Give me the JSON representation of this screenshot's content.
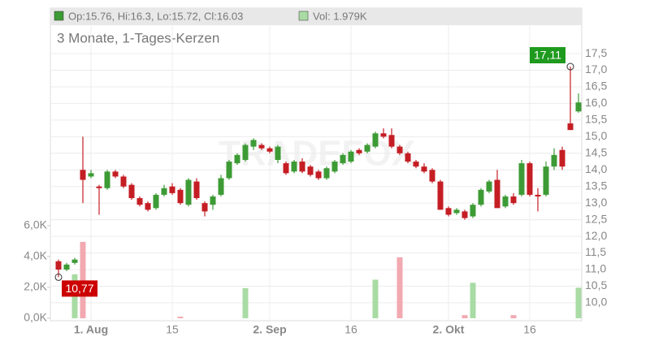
{
  "chart_data": {
    "type": "candlestick",
    "title": "3 Monate, 1-Tages-Kerzen",
    "watermark": "TRADEFOX",
    "ohlc_label": "Op:15.76, Hi:16.3, Lo:15.72, Cl:16.03",
    "volume_label": "Vol: 1.979K",
    "categories": [
      null,
      null,
      null,
      null,
      "1. Aug",
      null,
      null,
      null,
      null,
      null,
      null,
      null,
      null,
      null,
      "15",
      null,
      null,
      null,
      null,
      null,
      null,
      null,
      null,
      null,
      null,
      null,
      "2. Sep",
      null,
      null,
      null,
      null,
      null,
      null,
      null,
      null,
      null,
      "16",
      null,
      null,
      null,
      null,
      null,
      null,
      null,
      null,
      null,
      null,
      null,
      "2. Okt",
      null,
      null,
      null,
      null,
      null,
      null,
      null,
      null,
      null,
      "16",
      null,
      null,
      null,
      null,
      null,
      null
    ],
    "open": [
      11.25,
      11.0,
      11.2,
      14.0,
      13.8,
      13.5,
      13.45,
      13.95,
      13.8,
      13.55,
      13.15,
      13.0,
      12.85,
      13.25,
      13.5,
      13.4,
      12.95,
      13.65,
      13.0,
      12.95,
      13.25,
      13.75,
      14.2,
      14.3,
      14.7,
      14.75,
      14.65,
      14.3,
      14.2,
      13.95,
      14.25,
      14.1,
      13.95,
      13.75,
      13.95,
      14.2,
      14.25,
      14.6,
      14.55,
      14.7,
      15.1,
      15.05,
      14.7,
      14.5,
      14.25,
      14.1,
      14.0,
      13.65,
      12.85,
      12.7,
      12.75,
      12.6,
      12.95,
      13.35,
      13.7,
      12.9,
      13.2,
      13.25,
      14.2,
      13.25,
      13.25,
      14.1,
      14.6,
      15.4,
      15.76
    ],
    "high": [
      11.3,
      11.2,
      11.35,
      15.0,
      14.0,
      13.55,
      14.0,
      14.0,
      13.85,
      13.6,
      13.2,
      13.05,
      13.3,
      13.55,
      13.6,
      13.45,
      13.75,
      13.75,
      13.05,
      13.25,
      13.85,
      14.3,
      14.5,
      14.8,
      14.95,
      14.8,
      14.7,
      14.75,
      14.25,
      14.3,
      14.35,
      14.15,
      14.0,
      14.1,
      14.3,
      14.5,
      14.6,
      14.65,
      14.8,
      15.15,
      15.25,
      15.25,
      14.75,
      14.55,
      14.3,
      14.2,
      14.05,
      13.7,
      12.9,
      12.85,
      12.8,
      13.0,
      13.45,
      13.7,
      14.0,
      13.25,
      13.3,
      14.3,
      14.25,
      13.45,
      14.25,
      14.65,
      14.7,
      17.11,
      16.3
    ],
    "low": [
      10.77,
      10.95,
      11.15,
      13.0,
      13.75,
      12.65,
      13.4,
      13.75,
      13.45,
      13.1,
      12.9,
      12.75,
      12.8,
      13.2,
      13.25,
      12.95,
      12.9,
      13.1,
      12.6,
      12.8,
      13.2,
      13.7,
      14.15,
      14.25,
      14.6,
      14.6,
      14.5,
      14.2,
      13.85,
      13.9,
      13.9,
      13.8,
      13.7,
      13.7,
      13.9,
      14.15,
      14.2,
      14.45,
      14.5,
      14.65,
      14.95,
      14.65,
      14.45,
      14.2,
      14.05,
      13.9,
      13.6,
      12.8,
      12.6,
      12.65,
      12.5,
      12.55,
      12.9,
      13.3,
      12.85,
      12.85,
      12.95,
      13.2,
      13.2,
      12.75,
      13.2,
      14.0,
      14.0,
      15.2,
      15.72
    ],
    "close": [
      11.0,
      11.15,
      11.3,
      13.7,
      13.9,
      13.45,
      13.95,
      13.8,
      13.5,
      13.15,
      12.95,
      12.8,
      13.25,
      13.45,
      13.3,
      13.0,
      13.7,
      13.15,
      12.75,
      13.2,
      13.75,
      14.25,
      14.45,
      14.75,
      14.9,
      14.65,
      14.55,
      14.7,
      13.9,
      14.25,
      13.95,
      13.85,
      13.75,
      14.05,
      14.25,
      14.45,
      14.55,
      14.5,
      14.75,
      15.1,
      15.0,
      14.7,
      14.5,
      14.25,
      14.1,
      13.95,
      13.65,
      12.8,
      12.65,
      12.8,
      12.55,
      12.95,
      13.4,
      13.65,
      12.85,
      13.2,
      13.0,
      14.2,
      13.25,
      13.2,
      14.1,
      14.45,
      14.1,
      15.2,
      16.03
    ],
    "volume": [
      0,
      0,
      2.85,
      4.95,
      0,
      0,
      0,
      0,
      0,
      0,
      0,
      0,
      0,
      0,
      0,
      0.1,
      0,
      0,
      0,
      0,
      0,
      0,
      0,
      1.95,
      0,
      0,
      0,
      0,
      0,
      0,
      0,
      0,
      0,
      0,
      0,
      0,
      0,
      0,
      0,
      2.5,
      0,
      0,
      3.95,
      0,
      0,
      0,
      0,
      0,
      0,
      0,
      0.2,
      2.3,
      0,
      0,
      0,
      0,
      0.2,
      0,
      0,
      0,
      0,
      0,
      0,
      0,
      1.979
    ],
    "up_color": "#3d9b35",
    "down_color": "#c41e24",
    "volume_up_color": "#a9dba4",
    "volume_down_color": "#f2a9b1",
    "ylim": [
      9.46,
      18.87
    ],
    "yticks": [
      {
        "value": 10.0,
        "label": "10,0"
      },
      {
        "value": 10.5,
        "label": "10,5"
      },
      {
        "value": 11.0,
        "label": "11,0"
      },
      {
        "value": 11.5,
        "label": "11,5"
      },
      {
        "value": 12.0,
        "label": "12,0"
      },
      {
        "value": 12.5,
        "label": "12,5"
      },
      {
        "value": 13.0,
        "label": "13,0"
      },
      {
        "value": 13.5,
        "label": "13,5"
      },
      {
        "value": 14.0,
        "label": "14,0"
      },
      {
        "value": 14.5,
        "label": "14,5"
      },
      {
        "value": 15.0,
        "label": "15,0"
      },
      {
        "value": 15.5,
        "label": "15,5"
      },
      {
        "value": 16.0,
        "label": "16,0"
      },
      {
        "value": 16.5,
        "label": "16,5"
      },
      {
        "value": 17.0,
        "label": "17,0"
      },
      {
        "value": 17.5,
        "label": "17,5"
      }
    ],
    "y2lim": [
      -0.16,
      20.1
    ],
    "y2ticks": [
      {
        "value": 0,
        "label": "0,0K"
      },
      {
        "value": 2,
        "label": "2,0K"
      },
      {
        "value": 4,
        "label": "4,0K"
      },
      {
        "value": 6,
        "label": "6,0K"
      }
    ],
    "annotations": [
      {
        "text": "17,11",
        "value": 17.11,
        "index": 63
      },
      {
        "text": "10,77",
        "value": 10.77,
        "index": 0
      }
    ],
    "grid": true
  }
}
